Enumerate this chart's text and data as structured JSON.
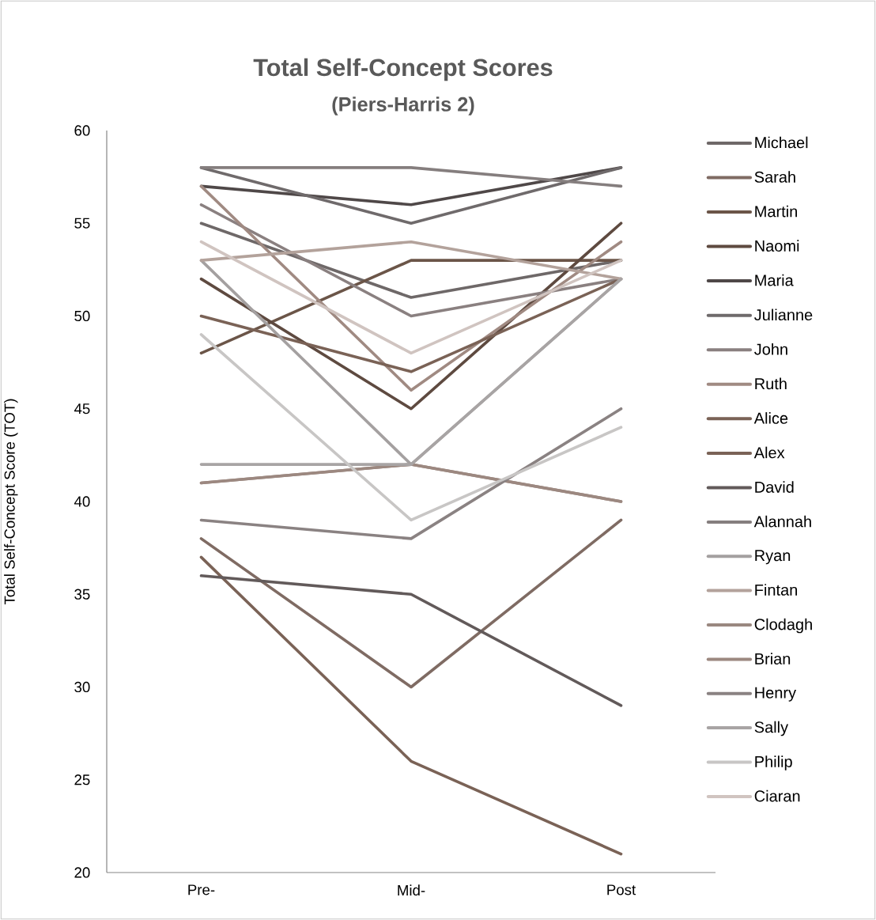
{
  "chart_data": {
    "type": "line",
    "title": "Total Self-Concept Scores",
    "subtitle": "(Piers-Harris 2)",
    "ylabel": "Total Self-Concept Score (TOT)",
    "categories": [
      "Pre-",
      "Mid-",
      "Post"
    ],
    "ylim": [
      20,
      60
    ],
    "yticks": [
      20,
      25,
      30,
      35,
      40,
      45,
      50,
      55,
      60
    ],
    "grid": false,
    "legend": "right",
    "marker": "none",
    "line_style": "solid",
    "series": [
      {
        "name": "Michael",
        "color": "#6e6868",
        "values": [
          55,
          51,
          53
        ]
      },
      {
        "name": "Sarah",
        "color": "#7f6b63",
        "values": [
          38,
          30,
          39
        ]
      },
      {
        "name": "Martin",
        "color": "#6b5548",
        "values": [
          48,
          53,
          53
        ]
      },
      {
        "name": "Naomi",
        "color": "#5e4a40",
        "values": [
          52,
          45,
          55
        ]
      },
      {
        "name": "Maria",
        "color": "#4f4848",
        "values": [
          57,
          56,
          58
        ]
      },
      {
        "name": "Julianne",
        "color": "#6f6a6b",
        "values": [
          58,
          55,
          58
        ]
      },
      {
        "name": "John",
        "color": "#8a8080",
        "values": [
          56,
          50,
          52
        ]
      },
      {
        "name": "Ruth",
        "color": "#a08a82",
        "values": [
          57,
          46,
          54
        ]
      },
      {
        "name": "Alice",
        "color": "#7a6256",
        "values": [
          50,
          47,
          52
        ]
      },
      {
        "name": "Alex",
        "color": "#7a6256",
        "values": [
          37,
          26,
          21
        ]
      },
      {
        "name": "David",
        "color": "#625a5a",
        "values": [
          36,
          35,
          29
        ]
      },
      {
        "name": "Alannah",
        "color": "#857e7e",
        "values": [
          58,
          58,
          57
        ]
      },
      {
        "name": "Ryan",
        "color": "#a4a0a0",
        "values": [
          53,
          42,
          52
        ]
      },
      {
        "name": "Fintan",
        "color": "#b3a29b",
        "values": [
          53,
          54,
          52
        ]
      },
      {
        "name": "Clodagh",
        "color": "#9a8880",
        "values": [
          41,
          42,
          40
        ]
      },
      {
        "name": "Brian",
        "color": "#9c8880",
        "values": [
          41,
          42,
          40
        ]
      },
      {
        "name": "Henry",
        "color": "#8a8282",
        "values": [
          39,
          38,
          45
        ]
      },
      {
        "name": "Sally",
        "color": "#a8a4a4",
        "values": [
          42,
          42,
          52
        ]
      },
      {
        "name": "Philip",
        "color": "#c8c6c5",
        "values": [
          49,
          39,
          44
        ]
      },
      {
        "name": "Ciaran",
        "color": "#d0c4c0",
        "values": [
          54,
          48,
          53
        ]
      }
    ]
  }
}
